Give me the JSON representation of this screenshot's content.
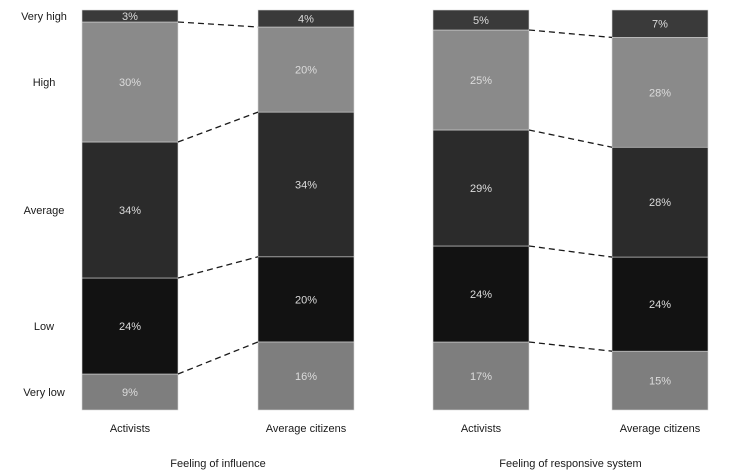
{
  "chart_data": {
    "type": "bar",
    "stacked": true,
    "percent": true,
    "grid": false,
    "levels": [
      "Very low",
      "Low",
      "Average",
      "High",
      "Very high"
    ],
    "level_colors": [
      "#7e7e7e",
      "#121212",
      "#2b2b2b",
      "#8a8a8a",
      "#3a3a3a"
    ],
    "groups": [
      {
        "label": "Feeling of influence",
        "bars": [
          {
            "label": "Activists",
            "values": [
              9,
              24,
              34,
              30,
              3
            ],
            "value_labels": [
              "9%",
              "24%",
              "34%",
              "30%",
              "3%"
            ]
          },
          {
            "label": "Average citizens",
            "values": [
              16,
              20,
              34,
              20,
              4
            ],
            "value_labels": [
              "16%",
              "20%",
              "34%",
              "20%",
              "4%"
            ]
          }
        ]
      },
      {
        "label": "Feeling of responsive system",
        "bars": [
          {
            "label": "Activists",
            "values": [
              17,
              24,
              29,
              25,
              5
            ],
            "value_labels": [
              "17%",
              "24%",
              "29%",
              "25%",
              "5%"
            ]
          },
          {
            "label": "Average citizens",
            "values": [
              15,
              24,
              28,
              28,
              7
            ],
            "value_labels": [
              "15%",
              "24%",
              "28%",
              "28%",
              "7%"
            ]
          }
        ]
      }
    ]
  }
}
